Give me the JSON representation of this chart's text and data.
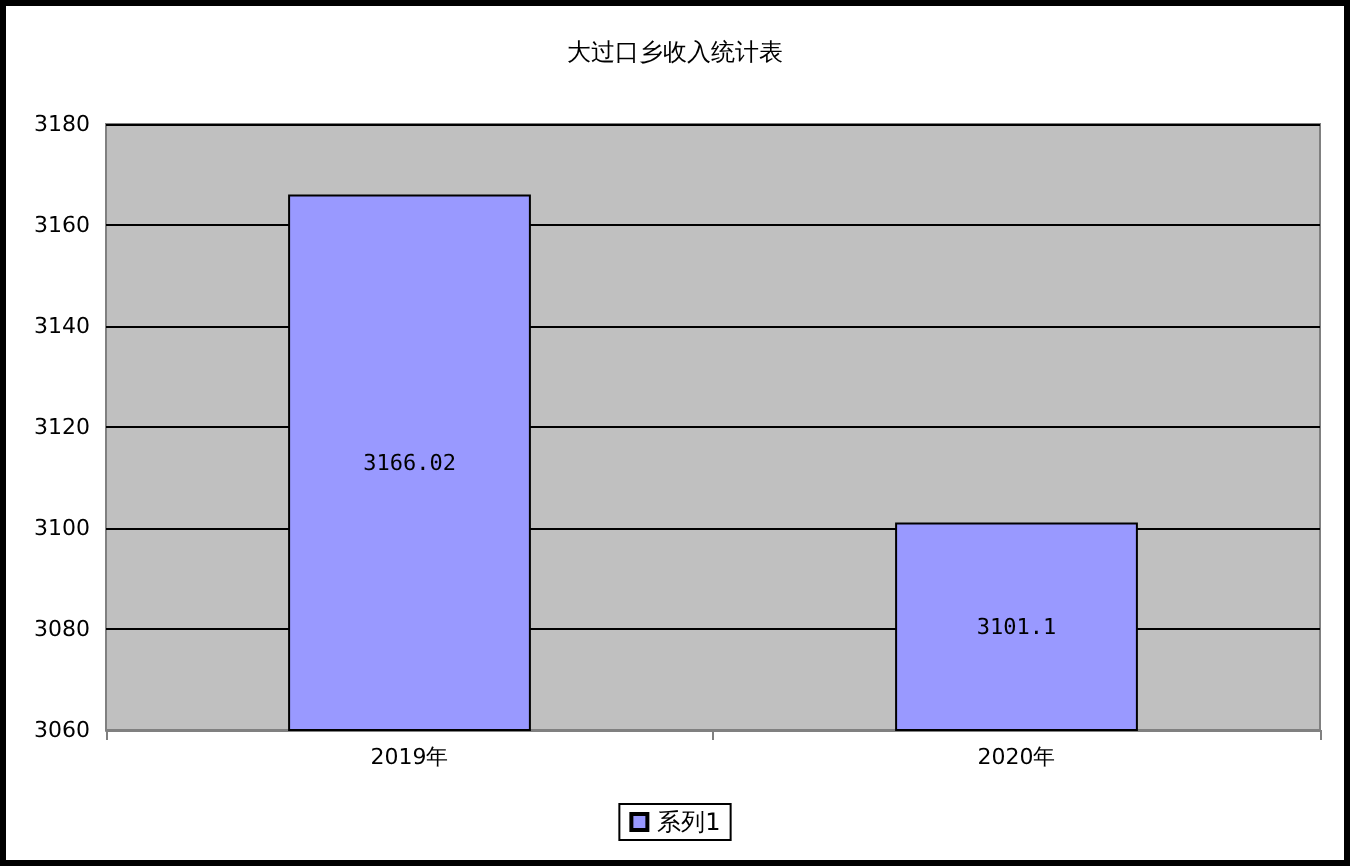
{
  "chart_data": {
    "type": "bar",
    "title": "大过口乡收入统计表",
    "categories": [
      "2019年",
      "2020年"
    ],
    "series": [
      {
        "name": "系列1",
        "color": "#9999ff",
        "values": [
          3166.02,
          3101.1
        ]
      }
    ],
    "ylim": [
      3060,
      3180
    ],
    "yticks": [
      3060,
      3080,
      3100,
      3120,
      3140,
      3160,
      3180
    ],
    "grid": "y",
    "legend": "bottom",
    "data_labels": true
  }
}
